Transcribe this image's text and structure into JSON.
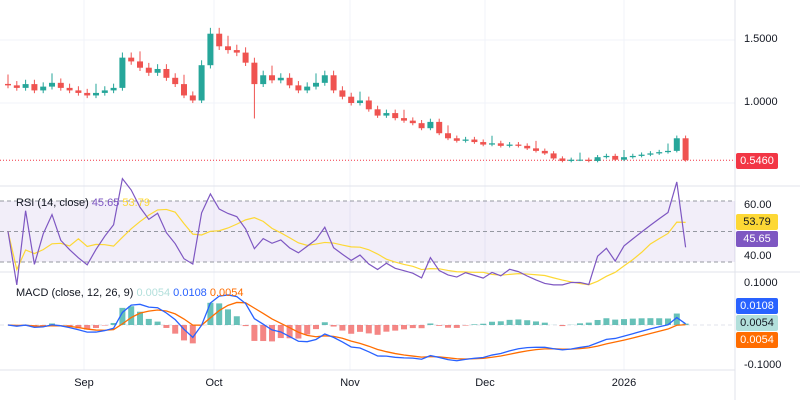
{
  "chart_data": {
    "type": "candlestick",
    "price_axis": {
      "ticks": [
        "1.5000",
        "1.0000"
      ],
      "tick_values": [
        1.5,
        1.0
      ],
      "ylim": [
        0.46,
        1.8
      ]
    },
    "current_price": "0.5460",
    "closes": [
      1.14,
      1.12,
      1.15,
      1.1,
      1.13,
      1.16,
      1.12,
      1.1,
      1.08,
      1.06,
      1.08,
      1.1,
      1.12,
      1.36,
      1.33,
      1.28,
      1.24,
      1.27,
      1.2,
      1.15,
      1.06,
      1.02,
      1.3,
      1.55,
      1.45,
      1.42,
      1.4,
      1.32,
      1.15,
      1.22,
      1.18,
      1.2,
      1.14,
      1.1,
      1.13,
      1.16,
      1.22,
      1.1,
      1.05,
      1.0,
      1.02,
      0.95,
      0.9,
      0.92,
      0.88,
      0.86,
      0.84,
      0.8,
      0.85,
      0.76,
      0.72,
      0.7,
      0.71,
      0.69,
      0.67,
      0.68,
      0.66,
      0.67,
      0.66,
      0.64,
      0.62,
      0.6,
      0.56,
      0.54,
      0.55,
      0.55,
      0.54,
      0.57,
      0.58,
      0.55,
      0.57,
      0.58,
      0.59,
      0.6,
      0.61,
      0.62,
      0.72,
      0.546
    ],
    "x_labels": [
      "Sep",
      "Oct",
      "Nov",
      "Dec",
      "2026"
    ],
    "rsi": {
      "title": "RSI (14, close)",
      "value": "45.65",
      "ma_value": "53.79",
      "ticks": [
        "60.00",
        "40.00"
      ],
      "levels": [
        70,
        50,
        30
      ]
    },
    "macd": {
      "title": "MACD (close, 12, 26, 9)",
      "hist": "0.0054",
      "macd": "0.0108",
      "signal": "0.0054",
      "ticks": [
        "0.1000",
        "-0.1000"
      ]
    },
    "colors": {
      "up": "#26a69a",
      "down": "#ef5350",
      "rsi": "#7e57c2",
      "rsi_ma": "#fdd835",
      "macd": "#2962ff",
      "signal": "#ff6d00",
      "hist_pos": "#26a69a",
      "hist_neg": "#ef5350"
    }
  }
}
